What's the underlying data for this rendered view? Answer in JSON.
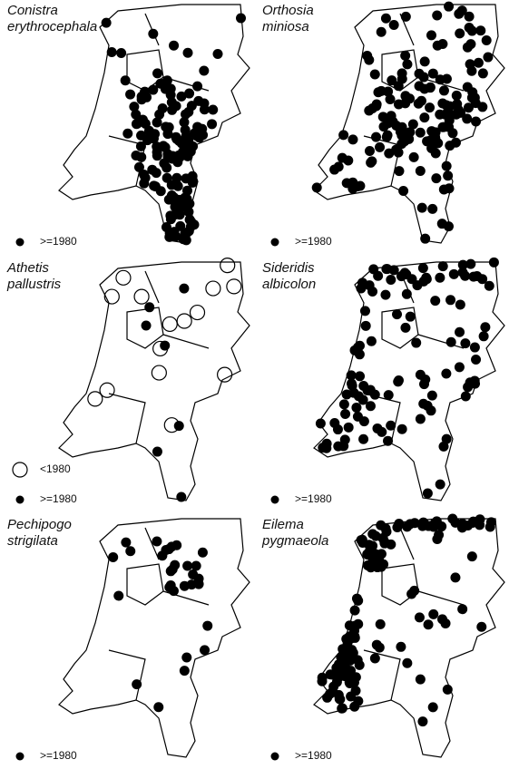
{
  "panels": [
    {
      "name": [
        "Conistra",
        "erythrocephala"
      ],
      "legend": [
        ">=1980"
      ]
    },
    {
      "name": [
        "Orthosia",
        "miniosa"
      ],
      "legend": [
        ">=1980"
      ]
    },
    {
      "name": [
        "Athetis",
        "pallustris"
      ],
      "legend": [
        "<1980",
        ">=1980"
      ]
    },
    {
      "name": [
        "Sideridis",
        "albicolon"
      ],
      "legend": [
        ">=1980"
      ]
    },
    {
      "name": [
        "Pechipogo",
        "strigilata"
      ],
      "legend": [
        ">=1980"
      ]
    },
    {
      "name": [
        "Eilema",
        "pygmaeola"
      ],
      "legend": [
        ">=1980"
      ]
    }
  ]
}
